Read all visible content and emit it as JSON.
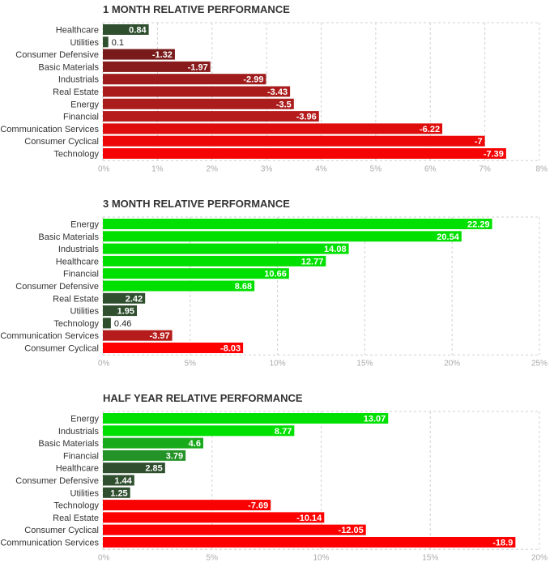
{
  "chart_data": [
    {
      "type": "bar",
      "orientation": "horizontal",
      "title": "1 MONTH RELATIVE PERFORMANCE",
      "categories": [
        "Healthcare",
        "Utilities",
        "Consumer Defensive",
        "Basic Materials",
        "Industrials",
        "Real Estate",
        "Energy",
        "Financial",
        "Communication Services",
        "Consumer Cyclical",
        "Technology"
      ],
      "values": [
        0.84,
        0.1,
        -1.32,
        -1.97,
        -2.99,
        -3.43,
        -3.5,
        -3.96,
        -6.22,
        -7,
        -7.39
      ],
      "value_labels": [
        "0.84",
        "0.1",
        "-1.32",
        "-1.97",
        "-2.99",
        "-3.43",
        "-3.5",
        "-3.96",
        "-6.22",
        "-7",
        "-7.39"
      ],
      "xlim": [
        0,
        8
      ],
      "xticks": [
        "0%",
        "1%",
        "2%",
        "3%",
        "4%",
        "5%",
        "6%",
        "7%",
        "8%"
      ],
      "grid": true
    },
    {
      "type": "bar",
      "orientation": "horizontal",
      "title": "3 MONTH RELATIVE PERFORMANCE",
      "categories": [
        "Energy",
        "Basic Materials",
        "Industrials",
        "Healthcare",
        "Financial",
        "Consumer Defensive",
        "Real Estate",
        "Utilities",
        "Technology",
        "Communication Services",
        "Consumer Cyclical"
      ],
      "values": [
        22.29,
        20.54,
        14.08,
        12.77,
        10.66,
        8.68,
        2.42,
        1.95,
        0.46,
        -3.97,
        -8.03
      ],
      "value_labels": [
        "22.29",
        "20.54",
        "14.08",
        "12.77",
        "10.66",
        "8.68",
        "2.42",
        "1.95",
        "0.46",
        "-3.97",
        "-8.03"
      ],
      "xlim": [
        0,
        25
      ],
      "xticks": [
        "0%",
        "5%",
        "10%",
        "15%",
        "20%",
        "25%"
      ],
      "grid": true
    },
    {
      "type": "bar",
      "orientation": "horizontal",
      "title": "HALF YEAR RELATIVE PERFORMANCE",
      "categories": [
        "Energy",
        "Industrials",
        "Basic Materials",
        "Financial",
        "Healthcare",
        "Consumer Defensive",
        "Utilities",
        "Technology",
        "Real Estate",
        "Consumer Cyclical",
        "Communication Services"
      ],
      "values": [
        13.07,
        8.77,
        4.6,
        3.79,
        2.85,
        1.44,
        1.25,
        -7.69,
        -10.14,
        -12.05,
        -18.9
      ],
      "value_labels": [
        "13.07",
        "8.77",
        "4.6",
        "3.79",
        "2.85",
        "1.44",
        "1.25",
        "-7.69",
        "-10.14",
        "-12.05",
        "-18.9"
      ],
      "xlim": [
        0,
        20
      ],
      "xticks": [
        "0%",
        "5%",
        "10%",
        "15%",
        "20%"
      ],
      "grid": true
    }
  ],
  "colors": {
    "positive_low": "#2f4f2f",
    "positive_mid": "#2e7d32",
    "positive_high": "#00e000",
    "negative_low": "#5a1a1a",
    "negative_mid": "#b71c1c",
    "negative_high": "#ff0000",
    "grid": "#d0d0d0",
    "title": "#333333",
    "label": "#333333",
    "tick": "#aaaaaa"
  }
}
